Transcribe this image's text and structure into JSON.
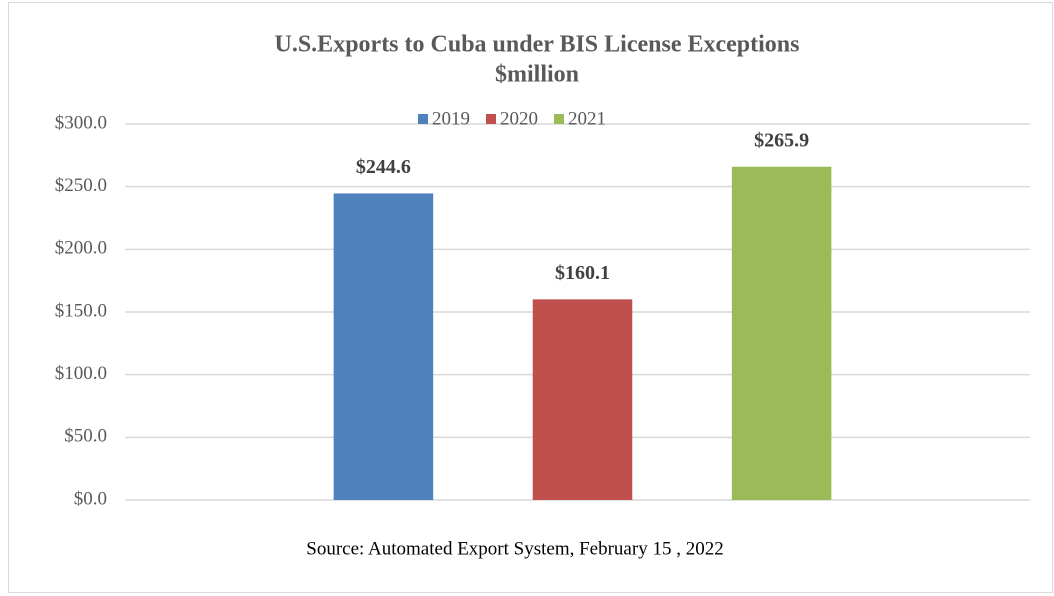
{
  "chart_data": {
    "type": "bar",
    "title": "U.S.Exports to Cuba under BIS License Exceptions",
    "subtitle": "$million",
    "source": "Source: Automated Export System, February 15 , 2022",
    "categories": [
      null
    ],
    "series": [
      {
        "name": "2019",
        "color": "#4f81bd",
        "values": [
          244.6
        ],
        "value_labels": [
          "$244.6"
        ]
      },
      {
        "name": "2020",
        "color": "#c0504d",
        "values": [
          160.1
        ],
        "value_labels": [
          "$160.1"
        ]
      },
      {
        "name": "2021",
        "color": "#9bbb59",
        "values": [
          265.9
        ],
        "value_labels": [
          "$265.9"
        ]
      }
    ],
    "ylim": [
      0,
      300
    ],
    "yticks": [
      {
        "value": 0,
        "label": "$0.0"
      },
      {
        "value": 50,
        "label": "$50.0"
      },
      {
        "value": 100,
        "label": "$100.0"
      },
      {
        "value": 150,
        "label": "$150.0"
      },
      {
        "value": 200,
        "label": "$200.0"
      },
      {
        "value": 250,
        "label": "$250.0"
      },
      {
        "value": 300,
        "label": "$300.0"
      }
    ],
    "grid": true,
    "legend": "top"
  }
}
